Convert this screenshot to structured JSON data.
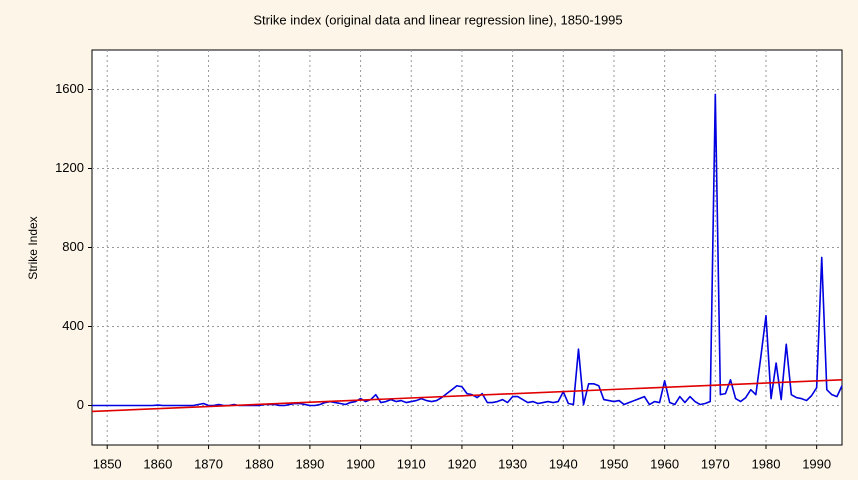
{
  "chart_data": {
    "type": "line",
    "title": "Strike index (original data and linear regression line), 1850-1995",
    "y_label": "Strike Index",
    "x": [
      1847,
      1848,
      1849,
      1850,
      1851,
      1852,
      1853,
      1854,
      1855,
      1856,
      1857,
      1858,
      1859,
      1860,
      1861,
      1862,
      1863,
      1864,
      1865,
      1866,
      1867,
      1868,
      1869,
      1870,
      1871,
      1872,
      1873,
      1874,
      1875,
      1876,
      1877,
      1878,
      1879,
      1880,
      1881,
      1882,
      1883,
      1884,
      1885,
      1886,
      1887,
      1888,
      1889,
      1890,
      1891,
      1892,
      1893,
      1894,
      1895,
      1896,
      1897,
      1898,
      1899,
      1900,
      1901,
      1902,
      1903,
      1904,
      1905,
      1906,
      1907,
      1908,
      1909,
      1910,
      1911,
      1912,
      1913,
      1914,
      1915,
      1916,
      1917,
      1918,
      1919,
      1920,
      1921,
      1922,
      1923,
      1924,
      1925,
      1926,
      1927,
      1928,
      1929,
      1930,
      1931,
      1932,
      1933,
      1934,
      1935,
      1936,
      1937,
      1938,
      1939,
      1940,
      1941,
      1942,
      1943,
      1944,
      1945,
      1946,
      1947,
      1948,
      1949,
      1950,
      1951,
      1952,
      1953,
      1954,
      1955,
      1956,
      1957,
      1958,
      1959,
      1960,
      1961,
      1962,
      1963,
      1964,
      1965,
      1966,
      1967,
      1968,
      1969,
      1970,
      1971,
      1972,
      1973,
      1974,
      1975,
      1976,
      1977,
      1978,
      1979,
      1980,
      1981,
      1982,
      1983,
      1984,
      1985,
      1986,
      1987,
      1988,
      1989,
      1990,
      1991,
      1992,
      1993,
      1994,
      1995
    ],
    "series": [
      {
        "name": "Strike index",
        "color": "#0000e0",
        "values": [
          0,
          0,
          0,
          0,
          0,
          0,
          0,
          0,
          0,
          0,
          0,
          0,
          0,
          2,
          0,
          0,
          0,
          0,
          0,
          0,
          0,
          5,
          10,
          0,
          0,
          5,
          0,
          0,
          5,
          0,
          0,
          0,
          0,
          0,
          5,
          5,
          5,
          0,
          0,
          5,
          10,
          10,
          5,
          0,
          0,
          5,
          15,
          20,
          15,
          10,
          5,
          15,
          20,
          35,
          20,
          30,
          55,
          15,
          20,
          30,
          20,
          25,
          15,
          20,
          25,
          35,
          25,
          20,
          25,
          40,
          60,
          80,
          100,
          95,
          60,
          55,
          40,
          60,
          15,
          15,
          20,
          30,
          15,
          45,
          45,
          30,
          15,
          20,
          10,
          15,
          20,
          15,
          20,
          70,
          10,
          5,
          285,
          5,
          110,
          110,
          100,
          30,
          25,
          20,
          25,
          5,
          15,
          25,
          35,
          45,
          5,
          20,
          15,
          125,
          15,
          5,
          45,
          15,
          45,
          20,
          5,
          10,
          20,
          1575,
          55,
          60,
          130,
          35,
          20,
          40,
          80,
          55,
          250,
          455,
          35,
          215,
          30,
          310,
          55,
          40,
          35,
          25,
          50,
          90,
          750,
          80,
          55,
          45,
          100
        ]
      },
      {
        "name": "Linear regression",
        "color": "#e00000",
        "x": [
          1847,
          1995
        ],
        "values": [
          -30,
          130
        ]
      }
    ],
    "xlim": [
      1847,
      1995
    ],
    "ylim": [
      -200,
      1800
    ],
    "xticks": [
      1850,
      1860,
      1870,
      1880,
      1890,
      1900,
      1910,
      1920,
      1930,
      1940,
      1950,
      1960,
      1970,
      1980,
      1990
    ],
    "yticks": [
      0,
      400,
      800,
      1200,
      1600
    ],
    "grid": true
  }
}
